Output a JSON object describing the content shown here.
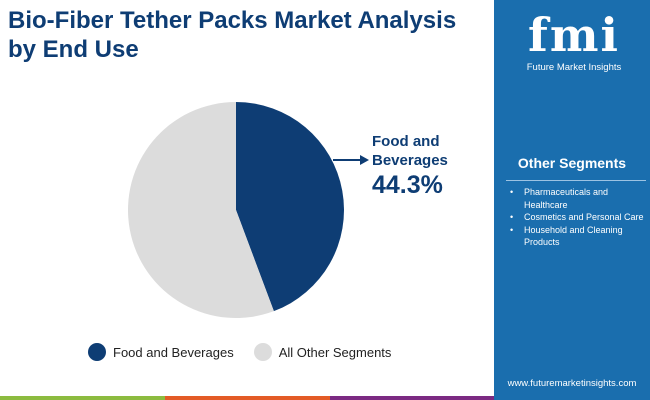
{
  "title": "Bio-Fiber Tether Packs Market Analysis by End Use",
  "chart_data": {
    "type": "pie",
    "categories": [
      "Food and Beverages",
      "All Other Segments"
    ],
    "values": [
      44.3,
      55.7
    ],
    "colors": [
      "#0e3d74",
      "#dcdcdc"
    ],
    "callout": {
      "label": "Food and Beverages",
      "value": "44.3%"
    },
    "legend": "bottom"
  },
  "legend": [
    "Food and Beverages",
    "All Other Segments"
  ],
  "sidebar": {
    "logo_text": "fmi",
    "logo_sub": "Future Market Insights",
    "heading": "Other Segments",
    "items": [
      "Pharmaceuticals and Healthcare",
      "Cosmetics and Personal Care",
      "Household and Cleaning Products"
    ],
    "url": "www.futuremarketinsights.com"
  },
  "colors": {
    "sidebar": "#1a6eae",
    "stripe": [
      "#8cbb3f",
      "#e35b26",
      "#7b2a82"
    ]
  }
}
